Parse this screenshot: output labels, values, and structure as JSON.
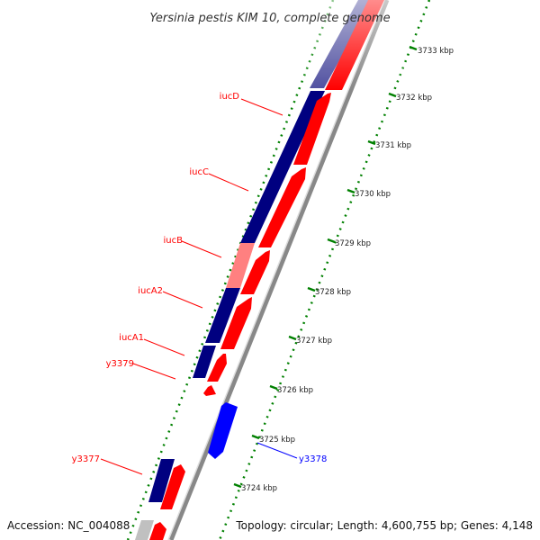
{
  "title": "Yersinia pestis KIM 10, complete genome",
  "footer": {
    "accession": "Accession: NC_004088",
    "summary": "Topology: circular; Length: 4,600,755 bp; Genes: 4,148"
  },
  "ticks": [
    {
      "label": "3733 kbp"
    },
    {
      "label": "3732 kbp"
    },
    {
      "label": "3731 kbp"
    },
    {
      "label": "3730 kbp"
    },
    {
      "label": "3729 kbp"
    },
    {
      "label": "3728 kbp"
    },
    {
      "label": "3727 kbp"
    },
    {
      "label": "3726 kbp"
    },
    {
      "label": "3725 kbp"
    },
    {
      "label": "3724 kbp"
    }
  ],
  "genes": [
    {
      "name": "iucD",
      "color": "#ff0000"
    },
    {
      "name": "iucC",
      "color": "#ff0000"
    },
    {
      "name": "iucB",
      "color": "#ff0000"
    },
    {
      "name": "iucA2",
      "color": "#ff0000"
    },
    {
      "name": "iucA1",
      "color": "#ff0000"
    },
    {
      "name": "y3379",
      "color": "#ff0000"
    },
    {
      "name": "y3378",
      "color": "#0000ff"
    },
    {
      "name": "y3377",
      "color": "#ff0000"
    }
  ],
  "colors": {
    "forward_strand": "#ff0000",
    "reverse_strand": "#0000ff",
    "conservation_high": "#000080",
    "conservation_low": "#ff8080",
    "ticks": "#008000",
    "backbone": "#888888"
  }
}
